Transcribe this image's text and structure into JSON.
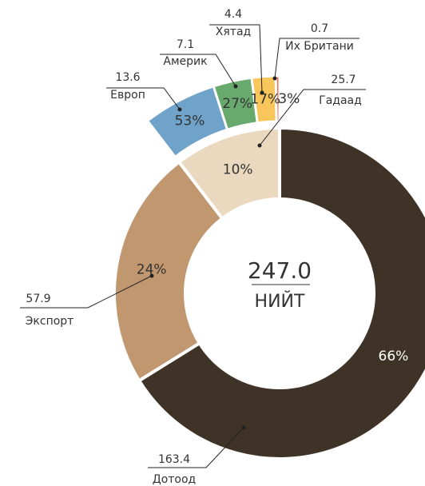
{
  "chart_data": {
    "type": "donut",
    "total": "247.0",
    "total_label": "НИЙТ",
    "categories": [
      "Дотоод",
      "Экспорт",
      "Гадаад"
    ],
    "values": [
      163.4,
      57.9,
      25.7
    ],
    "percent_labels": [
      "66%",
      "24%",
      "10%"
    ],
    "colors": [
      "#3f3327",
      "#c1976f",
      "#ead9bf"
    ],
    "breakdown": {
      "categories": [
        "Европ",
        "Америк",
        "Хятад",
        "Их Британи"
      ],
      "values": [
        13.6,
        7.1,
        4.4,
        0.7
      ],
      "percent_labels": [
        "53%",
        "27%",
        "17%",
        "3%"
      ],
      "colors": [
        "#6fa3c9",
        "#68a96d",
        "#f8c65b",
        "#e8735a"
      ]
    }
  }
}
